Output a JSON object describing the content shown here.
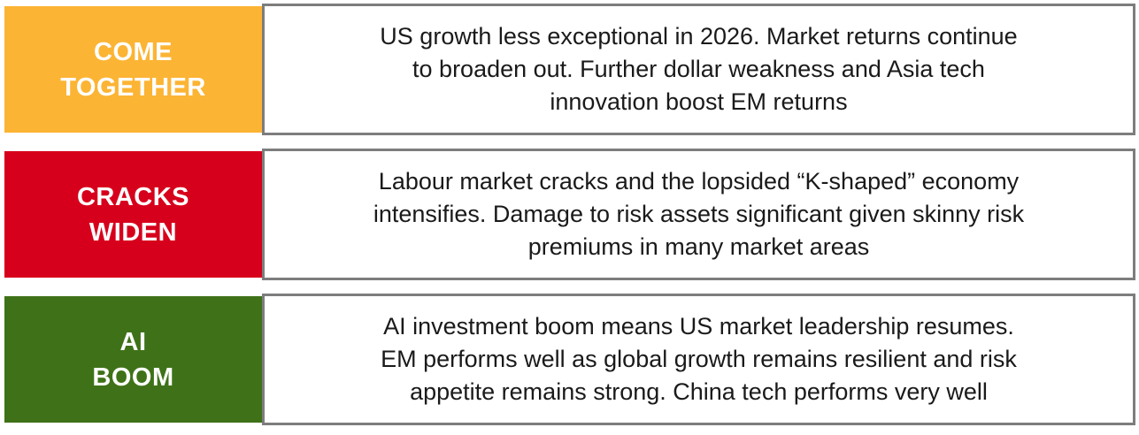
{
  "scenarios": [
    {
      "label": "COME\nTOGETHER",
      "color": "#FCB434",
      "description": "US growth less exceptional in 2026. Market returns continue\nto broaden out. Further dollar weakness and Asia tech\ninnovation boost EM returns"
    },
    {
      "label": "CRACKS\nWIDEN",
      "color": "#D7001C",
      "description": "Labour market cracks and the lopsided “K-shaped” economy\nintensifies. Damage to risk assets significant given skinny risk\npremiums in many market areas"
    },
    {
      "label": "AI\nBOOM",
      "color": "#3F7218",
      "description": "AI investment boom means US market leadership resumes.\nEM performs well as global growth remains resilient and risk\nappetite remains strong. China tech performs very well"
    }
  ],
  "styles": {
    "label_text_color": "#FFFFFF",
    "description_text_color": "#1A1A1A",
    "description_border_color": "#7D7D7D",
    "background_color": "#FFFFFF"
  }
}
